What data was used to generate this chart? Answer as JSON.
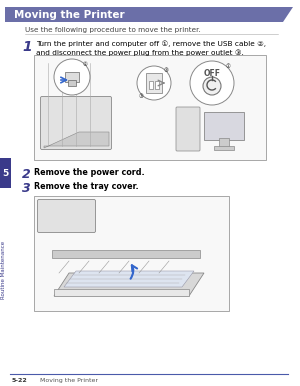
{
  "title": "Moving the Printer",
  "title_bg_color": "#6b6fa8",
  "title_text_color": "#ffffff",
  "page_bg_color": "#ffffff",
  "body_text_color": "#000000",
  "step_number_color": "#3a3a8a",
  "intro_text": "Use the following procedure to move the printer.",
  "step1_num": "1",
  "step1_text": "Turn the printer and computer off ①, remove the USB cable ②,\nand disconnect the power plug from the power outlet ③.",
  "step2_num": "2",
  "step2_text": "Remove the power cord.",
  "step3_num": "3",
  "step3_text": "Remove the tray cover.",
  "footer_line_color": "#4a5aaa",
  "footer_page": "5-22",
  "footer_title": "Moving the Printer",
  "sidebar_color": "#3a3a8a",
  "sidebar_text": "Routine Maintenance",
  "sidebar_num": "5",
  "divider_color": "#aaaaaa",
  "img_border_color": "#999999",
  "img_bg_color": "#f8f8f8"
}
